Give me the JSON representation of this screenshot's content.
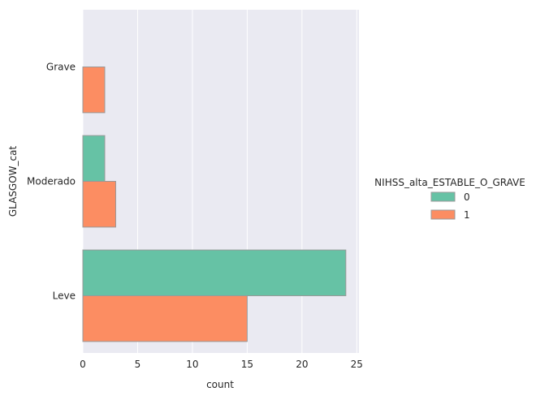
{
  "chart_data": {
    "type": "bar",
    "orientation": "horizontal",
    "categories": [
      "Grave",
      "Moderado",
      "Leve"
    ],
    "series": [
      {
        "name": "0",
        "values": [
          0,
          2,
          24
        ],
        "color": "#66c2a5"
      },
      {
        "name": "1",
        "values": [
          2,
          3,
          15
        ],
        "color": "#fc8d62"
      }
    ],
    "xlabel": "count",
    "ylabel": "GLASGOW_cat",
    "xlim": [
      0,
      25.2
    ],
    "xticks": [
      "0",
      "5",
      "10",
      "15",
      "20",
      "25"
    ],
    "legend": {
      "title": "NIHSS_alta_ESTABLE_O_GRAVE",
      "placement": "right"
    },
    "grid": true,
    "background_color": "#eaeaf2",
    "grid_color": "#ffffff",
    "bar_edge_color": "#999999"
  }
}
